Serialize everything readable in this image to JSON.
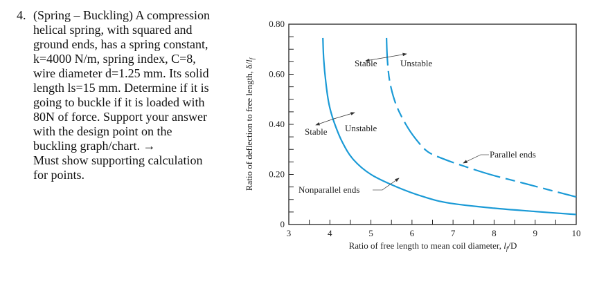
{
  "question": {
    "number": "4.",
    "lines": [
      "(Spring – Buckling) A compression",
      "helical spring, with squared and",
      "ground ends, has a spring constant,",
      "k=4000 N/m, spring index, C=8,",
      "wire diameter d=1.25 mm. Its solid",
      "length ls=15 mm.  Determine if it is",
      "going to buckle if it is loaded with",
      "80N of force.  Support your answer",
      "with the design point on the",
      "buckling graph/chart. →",
      "Must show supporting calculation",
      "for points."
    ]
  },
  "chart_data": {
    "type": "line",
    "title": "",
    "xlabel": "Ratio of free length to mean coil diameter, lf/D",
    "ylabel": "Ratio of deflection to free length, δ/lf",
    "xlim": [
      3,
      10
    ],
    "ylim": [
      0,
      0.8
    ],
    "x_ticks": [
      "3",
      "4",
      "5",
      "6",
      "7",
      "8",
      "9",
      "10"
    ],
    "y_ticks": [
      "0",
      "0.20",
      "0.40",
      "0.60",
      "0.80"
    ],
    "grid": false,
    "line_color": "#1a9ad6",
    "series": [
      {
        "name": "Nonparallel ends",
        "style": "solid",
        "x": [
          3.83,
          3.85,
          3.9,
          3.98,
          4.1,
          4.3,
          4.57,
          5.0,
          5.63,
          6.3,
          6.93,
          8.0,
          9.0,
          10.0
        ],
        "y": [
          0.745,
          0.66,
          0.57,
          0.48,
          0.41,
          0.33,
          0.26,
          0.2,
          0.15,
          0.11,
          0.085,
          0.065,
          0.052,
          0.04
        ]
      },
      {
        "name": "Parallel ends",
        "style": "dashed",
        "x": [
          5.38,
          5.4,
          5.46,
          5.61,
          5.85,
          6.1,
          6.39,
          6.8,
          7.23,
          7.9,
          8.6,
          9.3,
          10.0
        ],
        "y": [
          0.745,
          0.66,
          0.57,
          0.48,
          0.4,
          0.34,
          0.29,
          0.26,
          0.235,
          0.2,
          0.17,
          0.14,
          0.11
        ]
      }
    ],
    "annotations": [
      {
        "text": "Stable",
        "side": "left",
        "curve": "Parallel ends",
        "x": 5.4,
        "y": 0.64
      },
      {
        "text": "Unstable",
        "side": "right",
        "curve": "Parallel ends",
        "x": 5.8,
        "y": 0.64
      },
      {
        "text": "Stable",
        "side": "left",
        "curve": "Nonparallel ends",
        "x": 3.6,
        "y": 0.38
      },
      {
        "text": "Unstable",
        "side": "right",
        "curve": "Nonparallel ends",
        "x": 4.5,
        "y": 0.39
      },
      {
        "text": "Parallel ends",
        "x": 8.3,
        "y": 0.28
      },
      {
        "text": "Nonparallel ends",
        "x": 3.9,
        "y": 0.14
      }
    ]
  },
  "labels": {
    "stable_upper": "Stable",
    "unstable_upper": "Unstable",
    "stable_lower": "Stable",
    "unstable_lower": "Unstable",
    "parallel": "Parallel ends",
    "nonparallel": "Nonparallel ends",
    "xlabel_prefix": "Ratio of free length to mean coil diameter, ",
    "xlabel_var": "l",
    "xlabel_sub": "f",
    "xlabel_suffix": "/D",
    "ylabel_prefix": "Ratio of deflection to free length, δ/",
    "ylabel_var": "l",
    "ylabel_sub": "f"
  }
}
